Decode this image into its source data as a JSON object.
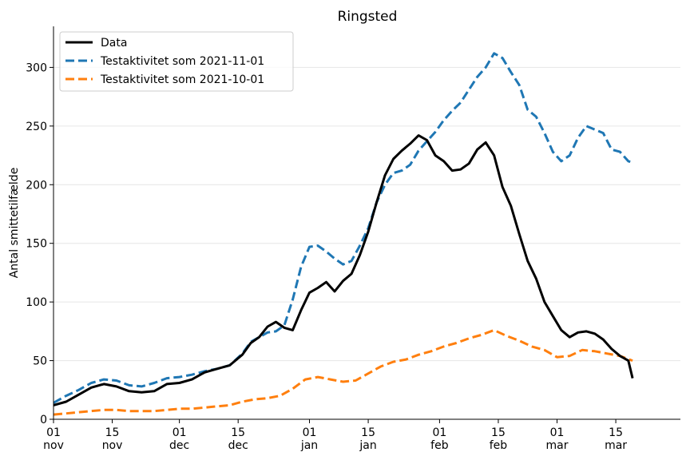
{
  "chart_data": {
    "type": "line",
    "title": "Ringsted",
    "xlabel": "",
    "ylabel": "Antal smittetilfælde",
    "x_start": "2021-11-01",
    "ylim": [
      0,
      335
    ],
    "yticks": [
      0,
      50,
      100,
      150,
      200,
      250,
      300
    ],
    "xticks": [
      {
        "date": "2021-11-01",
        "day": "01",
        "month": "nov"
      },
      {
        "date": "2021-11-15",
        "day": "15",
        "month": "nov"
      },
      {
        "date": "2021-12-01",
        "day": "01",
        "month": "dec"
      },
      {
        "date": "2021-12-15",
        "day": "15",
        "month": "dec"
      },
      {
        "date": "2022-01-01",
        "day": "01",
        "month": "jan"
      },
      {
        "date": "2022-01-15",
        "day": "15",
        "month": "jan"
      },
      {
        "date": "2022-02-01",
        "day": "01",
        "month": "feb"
      },
      {
        "date": "2022-02-15",
        "day": "15",
        "month": "feb"
      },
      {
        "date": "2022-03-01",
        "day": "01",
        "month": "mar"
      },
      {
        "date": "2022-03-15",
        "day": "15",
        "month": "mar"
      }
    ],
    "grid": "horizontal",
    "legend_position": "top-left",
    "series": [
      {
        "name": "Data",
        "color": "#000000",
        "dash": "solid",
        "points": [
          [
            "2021-11-01",
            12
          ],
          [
            "2021-11-04",
            15
          ],
          [
            "2021-11-07",
            21
          ],
          [
            "2021-11-10",
            27
          ],
          [
            "2021-11-13",
            30
          ],
          [
            "2021-11-16",
            28
          ],
          [
            "2021-11-19",
            24
          ],
          [
            "2021-11-22",
            23
          ],
          [
            "2021-11-25",
            24
          ],
          [
            "2021-11-28",
            30
          ],
          [
            "2021-12-01",
            31
          ],
          [
            "2021-12-04",
            34
          ],
          [
            "2021-12-07",
            40
          ],
          [
            "2021-12-10",
            43
          ],
          [
            "2021-12-13",
            46
          ],
          [
            "2021-12-16",
            55
          ],
          [
            "2021-12-18",
            65
          ],
          [
            "2021-12-20",
            70
          ],
          [
            "2021-12-22",
            79
          ],
          [
            "2021-12-24",
            83
          ],
          [
            "2021-12-26",
            78
          ],
          [
            "2021-12-28",
            76
          ],
          [
            "2021-12-30",
            93
          ],
          [
            "2022-01-01",
            108
          ],
          [
            "2022-01-03",
            112
          ],
          [
            "2022-01-05",
            117
          ],
          [
            "2022-01-07",
            109
          ],
          [
            "2022-01-09",
            118
          ],
          [
            "2022-01-11",
            124
          ],
          [
            "2022-01-13",
            140
          ],
          [
            "2022-01-15",
            160
          ],
          [
            "2022-01-17",
            185
          ],
          [
            "2022-01-19",
            208
          ],
          [
            "2022-01-21",
            222
          ],
          [
            "2022-01-23",
            229
          ],
          [
            "2022-01-25",
            235
          ],
          [
            "2022-01-27",
            242
          ],
          [
            "2022-01-29",
            238
          ],
          [
            "2022-01-31",
            225
          ],
          [
            "2022-02-02",
            220
          ],
          [
            "2022-02-04",
            212
          ],
          [
            "2022-02-06",
            213
          ],
          [
            "2022-02-08",
            218
          ],
          [
            "2022-02-10",
            230
          ],
          [
            "2022-02-12",
            236
          ],
          [
            "2022-02-14",
            225
          ],
          [
            "2022-02-16",
            198
          ],
          [
            "2022-02-18",
            182
          ],
          [
            "2022-02-20",
            158
          ],
          [
            "2022-02-22",
            135
          ],
          [
            "2022-02-24",
            120
          ],
          [
            "2022-02-26",
            100
          ],
          [
            "2022-02-28",
            88
          ],
          [
            "2022-03-02",
            76
          ],
          [
            "2022-03-04",
            70
          ],
          [
            "2022-03-06",
            74
          ],
          [
            "2022-03-08",
            75
          ],
          [
            "2022-03-10",
            73
          ],
          [
            "2022-03-12",
            68
          ],
          [
            "2022-03-14",
            60
          ],
          [
            "2022-03-16",
            54
          ],
          [
            "2022-03-18",
            50
          ],
          [
            "2022-03-19",
            35
          ]
        ]
      },
      {
        "name": "Testaktivitet som 2021-11-01",
        "color": "#1f77b4",
        "dash": "dashed",
        "points": [
          [
            "2021-11-01",
            14
          ],
          [
            "2021-11-04",
            20
          ],
          [
            "2021-11-07",
            25
          ],
          [
            "2021-11-10",
            31
          ],
          [
            "2021-11-13",
            34
          ],
          [
            "2021-11-16",
            33
          ],
          [
            "2021-11-19",
            29
          ],
          [
            "2021-11-22",
            28
          ],
          [
            "2021-11-25",
            31
          ],
          [
            "2021-11-28",
            35
          ],
          [
            "2021-12-01",
            36
          ],
          [
            "2021-12-04",
            38
          ],
          [
            "2021-12-07",
            41
          ],
          [
            "2021-12-10",
            43
          ],
          [
            "2021-12-13",
            46
          ],
          [
            "2021-12-16",
            56
          ],
          [
            "2021-12-18",
            66
          ],
          [
            "2021-12-20",
            70
          ],
          [
            "2021-12-22",
            74
          ],
          [
            "2021-12-24",
            75
          ],
          [
            "2021-12-26",
            80
          ],
          [
            "2021-12-28",
            102
          ],
          [
            "2021-12-30",
            130
          ],
          [
            "2022-01-01",
            147
          ],
          [
            "2022-01-03",
            148
          ],
          [
            "2022-01-05",
            143
          ],
          [
            "2022-01-07",
            137
          ],
          [
            "2022-01-09",
            132
          ],
          [
            "2022-01-11",
            135
          ],
          [
            "2022-01-13",
            148
          ],
          [
            "2022-01-15",
            163
          ],
          [
            "2022-01-17",
            185
          ],
          [
            "2022-01-19",
            200
          ],
          [
            "2022-01-21",
            210
          ],
          [
            "2022-01-23",
            212
          ],
          [
            "2022-01-25",
            217
          ],
          [
            "2022-01-27",
            229
          ],
          [
            "2022-01-29",
            237
          ],
          [
            "2022-01-31",
            245
          ],
          [
            "2022-02-02",
            255
          ],
          [
            "2022-02-04",
            263
          ],
          [
            "2022-02-06",
            270
          ],
          [
            "2022-02-08",
            281
          ],
          [
            "2022-02-10",
            292
          ],
          [
            "2022-02-12",
            300
          ],
          [
            "2022-02-14",
            312
          ],
          [
            "2022-02-16",
            308
          ],
          [
            "2022-02-18",
            296
          ],
          [
            "2022-02-20",
            285
          ],
          [
            "2022-02-22",
            264
          ],
          [
            "2022-02-24",
            258
          ],
          [
            "2022-02-26",
            244
          ],
          [
            "2022-02-28",
            228
          ],
          [
            "2022-03-02",
            220
          ],
          [
            "2022-03-04",
            225
          ],
          [
            "2022-03-06",
            240
          ],
          [
            "2022-03-08",
            250
          ],
          [
            "2022-03-10",
            247
          ],
          [
            "2022-03-12",
            244
          ],
          [
            "2022-03-14",
            230
          ],
          [
            "2022-03-16",
            228
          ],
          [
            "2022-03-18",
            220
          ],
          [
            "2022-03-19",
            219
          ]
        ]
      },
      {
        "name": "Testaktivitet som 2021-10-01",
        "color": "#ff7f0e",
        "dash": "dashed",
        "points": [
          [
            "2021-11-01",
            4
          ],
          [
            "2021-11-04",
            5
          ],
          [
            "2021-11-07",
            6
          ],
          [
            "2021-11-10",
            7
          ],
          [
            "2021-11-13",
            8
          ],
          [
            "2021-11-16",
            8
          ],
          [
            "2021-11-19",
            7
          ],
          [
            "2021-11-22",
            7
          ],
          [
            "2021-11-25",
            7
          ],
          [
            "2021-11-28",
            8
          ],
          [
            "2021-12-01",
            9
          ],
          [
            "2021-12-04",
            9
          ],
          [
            "2021-12-07",
            10
          ],
          [
            "2021-12-10",
            11
          ],
          [
            "2021-12-13",
            12
          ],
          [
            "2021-12-16",
            15
          ],
          [
            "2021-12-19",
            17
          ],
          [
            "2021-12-22",
            18
          ],
          [
            "2021-12-25",
            20
          ],
          [
            "2021-12-28",
            26
          ],
          [
            "2021-12-31",
            34
          ],
          [
            "2022-01-03",
            36
          ],
          [
            "2022-01-06",
            34
          ],
          [
            "2022-01-09",
            32
          ],
          [
            "2022-01-12",
            33
          ],
          [
            "2022-01-15",
            39
          ],
          [
            "2022-01-18",
            45
          ],
          [
            "2022-01-21",
            49
          ],
          [
            "2022-01-24",
            51
          ],
          [
            "2022-01-27",
            55
          ],
          [
            "2022-01-30",
            58
          ],
          [
            "2022-02-02",
            62
          ],
          [
            "2022-02-05",
            65
          ],
          [
            "2022-02-08",
            69
          ],
          [
            "2022-02-11",
            72
          ],
          [
            "2022-02-14",
            76
          ],
          [
            "2022-02-17",
            71
          ],
          [
            "2022-02-20",
            67
          ],
          [
            "2022-02-23",
            62
          ],
          [
            "2022-02-26",
            59
          ],
          [
            "2022-03-01",
            53
          ],
          [
            "2022-03-04",
            54
          ],
          [
            "2022-03-07",
            59
          ],
          [
            "2022-03-10",
            58
          ],
          [
            "2022-03-13",
            56
          ],
          [
            "2022-03-16",
            54
          ],
          [
            "2022-03-19",
            50
          ]
        ]
      }
    ]
  }
}
